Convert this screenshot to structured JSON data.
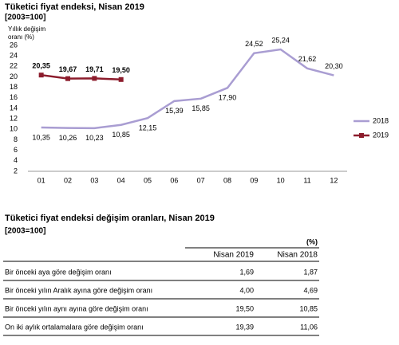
{
  "chart_data": {
    "type": "line",
    "title": "Tüketici fiyat endeksi, Nisan 2019",
    "subtitle": "[2003=100]",
    "y_label": "Yıllık değişim oranı (%)",
    "categories": [
      "01",
      "02",
      "03",
      "04",
      "05",
      "06",
      "07",
      "08",
      "09",
      "10",
      "11",
      "12"
    ],
    "series": [
      {
        "name": "2018",
        "color": "#a99dd2",
        "marker": "none",
        "values": [
          10.35,
          10.26,
          10.23,
          10.85,
          12.15,
          15.39,
          15.85,
          17.9,
          24.52,
          25.24,
          21.62,
          20.3
        ],
        "value_labels": [
          "10,35",
          "10,26",
          "10,23",
          "10,85",
          "12,15",
          "15,39",
          "15,85",
          "17,90",
          "24,52",
          "25,24",
          "21,62",
          "20,30"
        ]
      },
      {
        "name": "2019",
        "color": "#8c1c2c",
        "marker": "square",
        "values": [
          20.35,
          19.67,
          19.71,
          19.5,
          null,
          null,
          null,
          null,
          null,
          null,
          null,
          null
        ],
        "value_labels": [
          "20,35",
          "19,67",
          "19,71",
          "19,50",
          null,
          null,
          null,
          null,
          null,
          null,
          null,
          null
        ]
      }
    ],
    "ylim": [
      2,
      26
    ],
    "yticks": [
      2,
      4,
      6,
      8,
      10,
      12,
      14,
      16,
      18,
      20,
      22,
      24,
      26
    ],
    "legend": "right"
  },
  "table": {
    "title": "Tüketici fiyat endeksi değişim oranları, Nisan 2019",
    "subtitle": "[2003=100]",
    "unit": "(%)",
    "header": [
      "Nisan 2019",
      "Nisan 2018"
    ],
    "rows": [
      [
        "Bir önceki aya göre değişim oranı",
        "1,69",
        "1,87"
      ],
      [
        "Bir önceki yılın Aralık ayına göre değişim oranı",
        "4,00",
        "4,69"
      ],
      [
        "Bir önceki yılın aynı ayına göre değişim oranı",
        "19,50",
        "10,85"
      ],
      [
        "On iki aylık ortalamalara göre değişim oranı",
        "19,39",
        "11,06"
      ]
    ]
  }
}
